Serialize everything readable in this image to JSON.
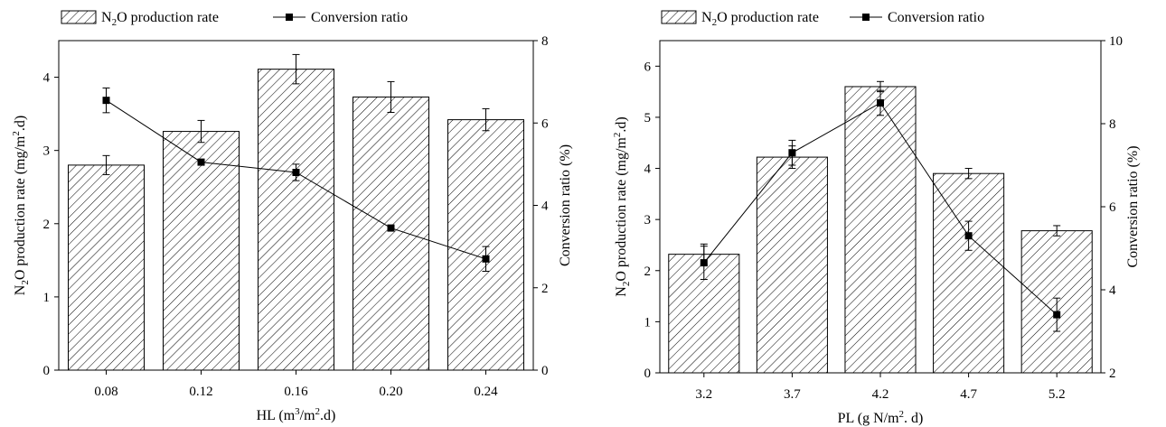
{
  "chart_data": [
    {
      "type": "bar",
      "categories": [
        "0.08",
        "0.12",
        "0.16",
        "0.20",
        "0.24"
      ],
      "series": [
        {
          "name": "N2O production rate",
          "name_parts": [
            "N",
            "2",
            "O production rate"
          ],
          "values": [
            2.8,
            3.26,
            4.11,
            3.73,
            3.42
          ],
          "errors": [
            0.13,
            0.15,
            0.2,
            0.21,
            0.15
          ],
          "axis": "left"
        },
        {
          "name": "Conversion ratio",
          "type": "line",
          "values": [
            6.55,
            5.05,
            4.8,
            3.45,
            2.7
          ],
          "errors": [
            0.3,
            0.0,
            0.2,
            0.0,
            0.3
          ],
          "axis": "right"
        }
      ],
      "xlabel": "HL (m3/m2.d)",
      "xlabel_parts": [
        "HL (m",
        "3",
        "/m",
        "2",
        ".d)"
      ],
      "ylabel": "N2O production rate (mg/m2.d)",
      "ylabel_parts": [
        "N",
        "2",
        "O production rate (mg/m",
        "2",
        ".d)"
      ],
      "ylabel_right": "Conversion ratio (%)",
      "ylim": [
        0,
        4.5
      ],
      "ylim_right": [
        0,
        8
      ],
      "yticks": [
        "0",
        "1",
        "2",
        "3",
        "4"
      ],
      "yticks_right": [
        "0",
        "2",
        "4",
        "6",
        "8"
      ],
      "legend": "top-left",
      "grid": false
    },
    {
      "type": "bar",
      "categories": [
        "3.2",
        "3.7",
        "4.2",
        "4.7",
        "5.2"
      ],
      "series": [
        {
          "name": "N2O production rate",
          "name_parts": [
            "N",
            "2",
            "O production rate"
          ],
          "values": [
            2.32,
            4.22,
            5.6,
            3.9,
            2.78
          ],
          "errors": [
            0.2,
            0.22,
            0.1,
            0.1,
            0.1
          ],
          "axis": "left"
        },
        {
          "name": "Conversion ratio",
          "type": "line",
          "values": [
            4.65,
            7.3,
            8.5,
            5.3,
            3.4
          ],
          "errors": [
            0.4,
            0.3,
            0.3,
            0.35,
            0.4
          ],
          "axis": "right"
        }
      ],
      "xlabel": "PL (g N/m2. d)",
      "xlabel_parts": [
        "PL (g N/m",
        "2",
        ". d)"
      ],
      "ylabel": "N2O production rate (mg/m2.d)",
      "ylabel_parts": [
        "N",
        "2",
        "O production rate (mg/m",
        "2",
        ".d)"
      ],
      "ylabel_right": "Conversion ratio (%)",
      "ylim": [
        0,
        6.5
      ],
      "ylim_right": [
        2,
        10
      ],
      "yticks": [
        "0",
        "1",
        "2",
        "3",
        "4",
        "5",
        "6"
      ],
      "yticks_right": [
        "2",
        "4",
        "6",
        "8",
        "10"
      ],
      "legend": "top",
      "grid": false
    }
  ]
}
